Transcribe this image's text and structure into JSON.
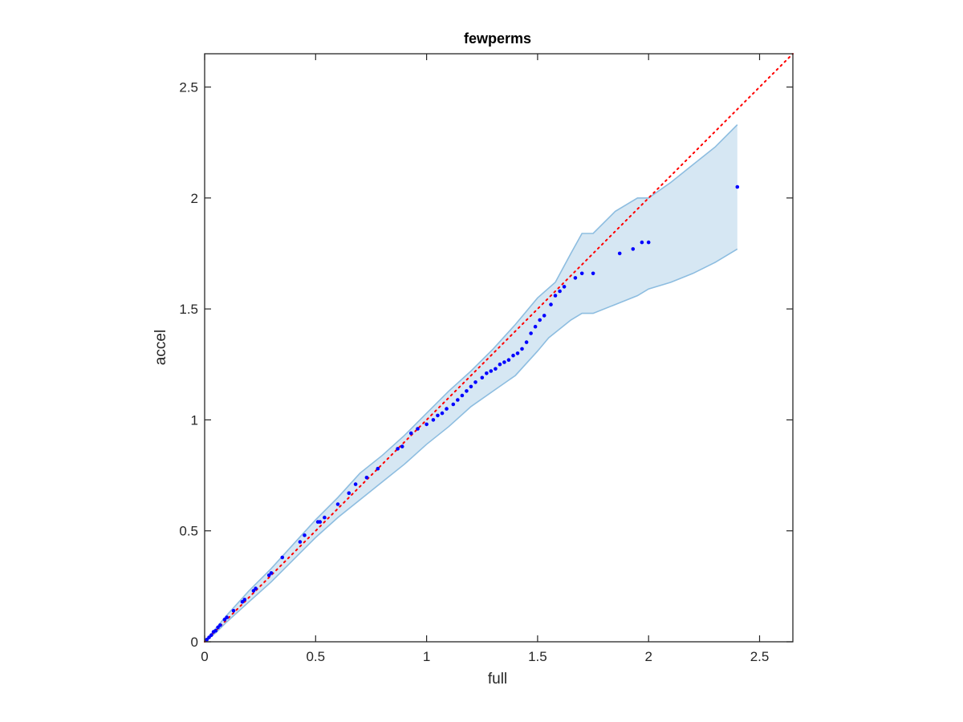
{
  "chart_data": {
    "type": "scatter",
    "title": "fewperms",
    "xlabel": "full",
    "ylabel": "accel",
    "xlim": [
      0,
      2.65
    ],
    "ylim": [
      0,
      2.65
    ],
    "xticks": [
      0,
      0.5,
      1,
      1.5,
      2,
      2.5
    ],
    "yticks": [
      0,
      0.5,
      1,
      1.5,
      2,
      2.5
    ],
    "xtick_labels": [
      "0",
      "0.5",
      "1",
      "1.5",
      "2",
      "2.5"
    ],
    "ytick_labels": [
      "0",
      "0.5",
      "1",
      "1.5",
      "2",
      "2.5"
    ],
    "grid": false,
    "legend": "none",
    "colors": {
      "points": "#0000ff",
      "reference_line": "#ff0000",
      "band_fill": "#d6e7f3",
      "band_edge": "#8dbde0",
      "axes": "#262626"
    },
    "reference_line": {
      "style": "dotted",
      "x": [
        0,
        2.65
      ],
      "y": [
        0,
        2.65
      ]
    },
    "band": {
      "upper": [
        [
          0,
          0
        ],
        [
          0.05,
          0.06
        ],
        [
          0.1,
          0.12
        ],
        [
          0.2,
          0.23
        ],
        [
          0.3,
          0.33
        ],
        [
          0.4,
          0.44
        ],
        [
          0.5,
          0.55
        ],
        [
          0.6,
          0.65
        ],
        [
          0.7,
          0.76
        ],
        [
          0.8,
          0.84
        ],
        [
          0.9,
          0.93
        ],
        [
          1.0,
          1.03
        ],
        [
          1.1,
          1.13
        ],
        [
          1.2,
          1.22
        ],
        [
          1.3,
          1.32
        ],
        [
          1.4,
          1.43
        ],
        [
          1.5,
          1.55
        ],
        [
          1.58,
          1.62
        ],
        [
          1.65,
          1.75
        ],
        [
          1.7,
          1.84
        ],
        [
          1.75,
          1.84
        ],
        [
          1.85,
          1.94
        ],
        [
          1.95,
          2.0
        ],
        [
          2.0,
          2.0
        ],
        [
          2.1,
          2.07
        ],
        [
          2.2,
          2.15
        ],
        [
          2.3,
          2.23
        ],
        [
          2.4,
          2.33
        ]
      ],
      "lower": [
        [
          0,
          0
        ],
        [
          0.05,
          0.04
        ],
        [
          0.1,
          0.09
        ],
        [
          0.2,
          0.18
        ],
        [
          0.3,
          0.27
        ],
        [
          0.4,
          0.37
        ],
        [
          0.5,
          0.47
        ],
        [
          0.6,
          0.56
        ],
        [
          0.7,
          0.64
        ],
        [
          0.8,
          0.72
        ],
        [
          0.9,
          0.8
        ],
        [
          1.0,
          0.89
        ],
        [
          1.1,
          0.97
        ],
        [
          1.2,
          1.06
        ],
        [
          1.3,
          1.13
        ],
        [
          1.4,
          1.2
        ],
        [
          1.5,
          1.31
        ],
        [
          1.55,
          1.37
        ],
        [
          1.65,
          1.45
        ],
        [
          1.7,
          1.48
        ],
        [
          1.75,
          1.48
        ],
        [
          1.85,
          1.52
        ],
        [
          1.95,
          1.56
        ],
        [
          2.0,
          1.59
        ],
        [
          2.1,
          1.62
        ],
        [
          2.2,
          1.66
        ],
        [
          2.3,
          1.71
        ],
        [
          2.4,
          1.77
        ]
      ]
    },
    "points": [
      [
        0.01,
        0.01
      ],
      [
        0.02,
        0.02
      ],
      [
        0.03,
        0.03
      ],
      [
        0.04,
        0.045
      ],
      [
        0.05,
        0.05
      ],
      [
        0.06,
        0.065
      ],
      [
        0.07,
        0.075
      ],
      [
        0.09,
        0.1
      ],
      [
        0.1,
        0.11
      ],
      [
        0.13,
        0.14
      ],
      [
        0.17,
        0.18
      ],
      [
        0.18,
        0.19
      ],
      [
        0.22,
        0.23
      ],
      [
        0.23,
        0.24
      ],
      [
        0.29,
        0.3
      ],
      [
        0.3,
        0.31
      ],
      [
        0.35,
        0.38
      ],
      [
        0.43,
        0.45
      ],
      [
        0.45,
        0.48
      ],
      [
        0.51,
        0.54
      ],
      [
        0.52,
        0.54
      ],
      [
        0.54,
        0.56
      ],
      [
        0.6,
        0.62
      ],
      [
        0.65,
        0.67
      ],
      [
        0.68,
        0.71
      ],
      [
        0.73,
        0.74
      ],
      [
        0.78,
        0.78
      ],
      [
        0.87,
        0.87
      ],
      [
        0.89,
        0.88
      ],
      [
        0.93,
        0.94
      ],
      [
        0.96,
        0.96
      ],
      [
        1.0,
        0.98
      ],
      [
        1.03,
        1.0
      ],
      [
        1.05,
        1.02
      ],
      [
        1.07,
        1.03
      ],
      [
        1.09,
        1.05
      ],
      [
        1.12,
        1.07
      ],
      [
        1.14,
        1.09
      ],
      [
        1.16,
        1.11
      ],
      [
        1.18,
        1.13
      ],
      [
        1.2,
        1.15
      ],
      [
        1.22,
        1.17
      ],
      [
        1.25,
        1.19
      ],
      [
        1.27,
        1.21
      ],
      [
        1.29,
        1.22
      ],
      [
        1.31,
        1.23
      ],
      [
        1.33,
        1.25
      ],
      [
        1.35,
        1.26
      ],
      [
        1.37,
        1.27
      ],
      [
        1.39,
        1.29
      ],
      [
        1.41,
        1.3
      ],
      [
        1.43,
        1.32
      ],
      [
        1.45,
        1.35
      ],
      [
        1.47,
        1.39
      ],
      [
        1.49,
        1.42
      ],
      [
        1.51,
        1.45
      ],
      [
        1.53,
        1.47
      ],
      [
        1.56,
        1.52
      ],
      [
        1.58,
        1.56
      ],
      [
        1.6,
        1.58
      ],
      [
        1.62,
        1.6
      ],
      [
        1.67,
        1.64
      ],
      [
        1.7,
        1.66
      ],
      [
        1.75,
        1.66
      ],
      [
        1.87,
        1.75
      ],
      [
        1.93,
        1.77
      ],
      [
        1.97,
        1.8
      ],
      [
        2.0,
        1.8
      ],
      [
        2.4,
        2.05
      ]
    ]
  }
}
